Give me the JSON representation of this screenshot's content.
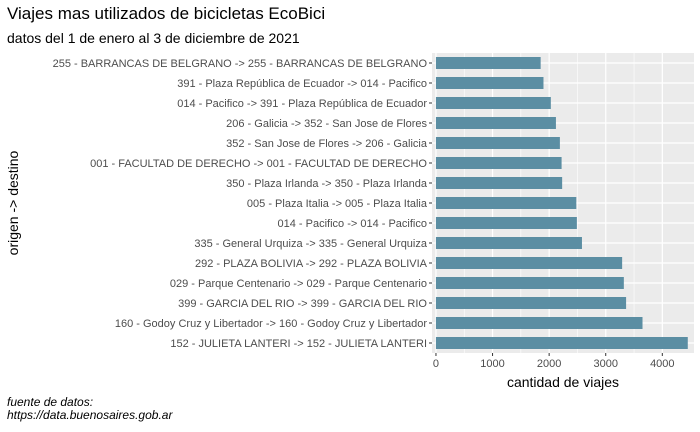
{
  "chart_data": {
    "type": "bar",
    "orientation": "horizontal",
    "title": "Viajes mas utilizados de bicicletas EcoBici",
    "subtitle": "datos del 1 de enero al 3 de diciembre de 2021",
    "xlabel": "cantidad de viajes",
    "ylabel": "origen -> destino",
    "caption_line1": "fuente de datos:",
    "caption_line2": "https://data.buenosaires.gob.ar",
    "xlim": [
      -70,
      4560
    ],
    "xticks": [
      0,
      1000,
      2000,
      3000,
      4000
    ],
    "grid": true,
    "bar_color": "#5b8ea3",
    "panel_color": "#ebebeb",
    "categories": [
      "255 - BARRANCAS DE BELGRANO -> 255 - BARRANCAS DE BELGRANO",
      "391 - Plaza República de Ecuador -> 014 - Pacifico",
      "014 - Pacifico -> 391 - Plaza República de Ecuador",
      "206 - Galicia -> 352 - San Jose de Flores",
      "352 - San Jose de Flores -> 206 - Galicia",
      "001 - FACULTAD DE DERECHO -> 001 - FACULTAD DE DERECHO",
      "350 - Plaza Irlanda -> 350 - Plaza Irlanda",
      "005 - Plaza Italia -> 005 - Plaza Italia",
      "014 - Pacifico -> 014 - Pacifico",
      "335 - General Urquiza -> 335 - General Urquiza",
      "292 - PLAZA BOLIVIA -> 292 - PLAZA BOLIVIA",
      "029 - Parque Centenario -> 029 - Parque Centenario",
      "399 - GARCIA DEL RIO -> 399 - GARCIA DEL RIO",
      "160 - Godoy Cruz y Libertador -> 160 - Godoy Cruz y Libertador",
      "152 - JULIETA LANTERI -> 152 - JULIETA LANTERI"
    ],
    "values": [
      1850,
      1900,
      2030,
      2120,
      2190,
      2220,
      2230,
      2480,
      2490,
      2580,
      3290,
      3320,
      3360,
      3650,
      4450
    ]
  }
}
